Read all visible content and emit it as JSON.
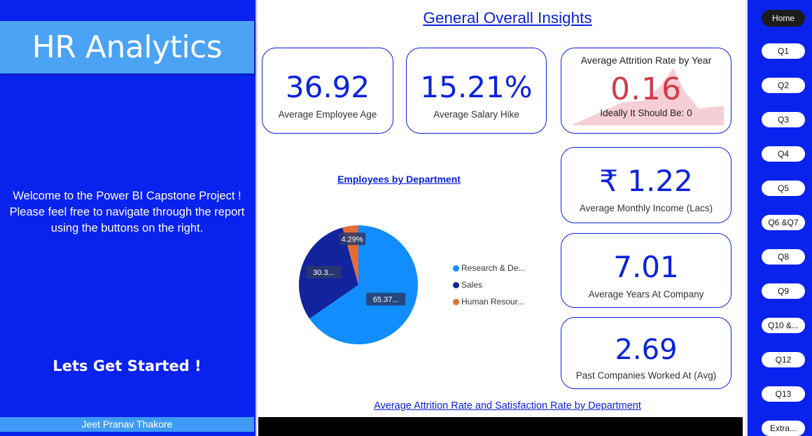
{
  "sidebar": {
    "title": "HR Analytics",
    "welcome_lines": [
      "Welcome to the Power BI Capstone Project !",
      "Please feel free to navigate through the report",
      "using the buttons on the right."
    ],
    "cta": "Lets Get Started !",
    "author": "Jeet Pranav Thakore"
  },
  "main": {
    "title": "General Overall Insights",
    "kpis": {
      "age": {
        "value": "36.92",
        "label": "Average Employee Age"
      },
      "hike": {
        "value": "15.21%",
        "label": "Average Salary Hike"
      },
      "attrition": {
        "title": "Average Attrition Rate by Year",
        "value": "0.16",
        "subtitle": "Ideally It Should Be: 0",
        "check": "✓"
      },
      "income": {
        "value": "₹ 1.22",
        "label": "Average Monthly Income (Lacs)"
      },
      "years": {
        "value": "7.01",
        "label": "Average Years At Company"
      },
      "companies": {
        "value": "2.69",
        "label": "Past Companies Worked At (Avg)"
      }
    },
    "bottom_title": "Average Attrition Rate and Satisfaction Rate by Department"
  },
  "chart_data": {
    "type": "pie",
    "title": "Employees by Department",
    "slices": [
      {
        "name": "Research & De...",
        "value": 65.37,
        "label": "65.37...",
        "color": "#118dff"
      },
      {
        "name": "Sales",
        "value": 30.34,
        "label": "30.3...",
        "color": "#12239e"
      },
      {
        "name": "Human Resour...",
        "value": 4.29,
        "label": "4.29%",
        "color": "#e66c37"
      }
    ],
    "legend_position": "right"
  },
  "colors": {
    "brand_blue": "#0a22ee",
    "accent_light_blue": "#4aa3f5",
    "kpi_blue": "#0a22dd",
    "attrition_red": "#d43a4a"
  },
  "nav": {
    "buttons": [
      "Home",
      "Q1",
      "Q2",
      "Q3",
      "Q4",
      "Q5",
      "Q6 &Q7",
      "Q8",
      "Q9",
      "Q10 &...",
      "Q12",
      "Q13",
      "Extra..."
    ],
    "active": "Home"
  }
}
